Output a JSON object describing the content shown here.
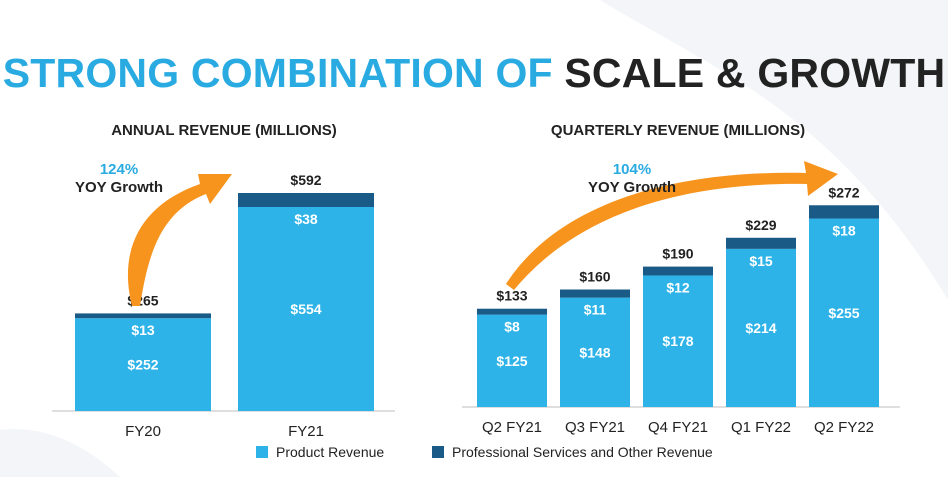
{
  "title": {
    "part1": "STRONG COMBINATION OF",
    "part2": "SCALE & GROWTH"
  },
  "colors": {
    "product": "#2db3e8",
    "services": "#1a5a86",
    "accent": "#29abe2",
    "arrow": "#f7941d",
    "growth_pct": "#29abe2"
  },
  "chart_data": [
    {
      "type": "bar",
      "stacked": true,
      "title": "ANNUAL REVENUE (MILLIONS)",
      "categories": [
        "FY20",
        "FY21"
      ],
      "series": [
        {
          "name": "Product Revenue",
          "values": [
            252,
            554
          ],
          "labels": [
            "$252",
            "$554"
          ]
        },
        {
          "name": "Professional Services and Other Revenue",
          "values": [
            13,
            38
          ],
          "labels": [
            "$13",
            "$38"
          ]
        }
      ],
      "totals": [
        265,
        592
      ],
      "total_labels": [
        "$265",
        "$592"
      ],
      "ylim": [
        0,
        592
      ],
      "growth": {
        "pct": "124%",
        "label": "YOY Growth"
      }
    },
    {
      "type": "bar",
      "stacked": true,
      "title": "QUARTERLY REVENUE (MILLIONS)",
      "categories": [
        "Q2 FY21",
        "Q3 FY21",
        "Q4 FY21",
        "Q1 FY22",
        "Q2 FY22"
      ],
      "series": [
        {
          "name": "Product Revenue",
          "values": [
            125,
            148,
            178,
            214,
            255
          ],
          "labels": [
            "$125",
            "$148",
            "$178",
            "$214",
            "$255"
          ]
        },
        {
          "name": "Professional Services and Other Revenue",
          "values": [
            8,
            11,
            12,
            15,
            18
          ],
          "labels": [
            "$8",
            "$11",
            "$12",
            "$15",
            "$18"
          ]
        }
      ],
      "totals": [
        133,
        160,
        190,
        229,
        272
      ],
      "total_labels": [
        "$133",
        "$160",
        "$190",
        "$229",
        "$272"
      ],
      "ylim": [
        0,
        272
      ],
      "growth": {
        "pct": "104%",
        "label": "YOY Growth"
      }
    }
  ],
  "legend": [
    {
      "label": "Product Revenue",
      "color": "#2db3e8"
    },
    {
      "label": "Professional Services and Other Revenue",
      "color": "#1a5a86"
    }
  ]
}
